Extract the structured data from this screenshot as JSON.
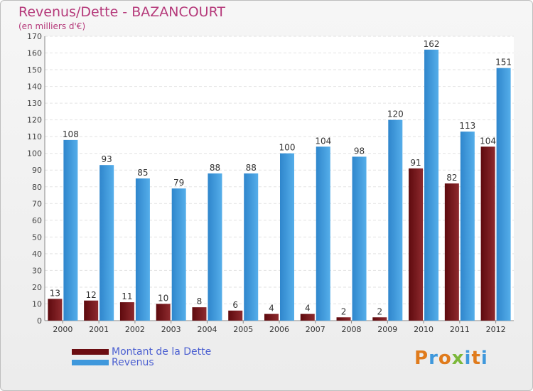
{
  "title": "Revenus/Dette - BAZANCOURT",
  "subtitle": "(en milliers d'€)",
  "logo_text": "Proxiti",
  "colors": {
    "debt": "#7a1a1f",
    "revenue": "#3f98dc",
    "title": "#b5397a",
    "legend_text": "#4b5fd1"
  },
  "legend": [
    {
      "label": "Montant de la Dette",
      "color": "#6b0d12"
    },
    {
      "label": "Revenus",
      "color": "#3f98dc"
    }
  ],
  "chart_data": {
    "type": "bar",
    "title": "Revenus/Dette - BAZANCOURT",
    "ylabel": "(en milliers d'€)",
    "ylim": [
      0,
      170
    ],
    "yticks": [
      0,
      10,
      20,
      30,
      40,
      50,
      60,
      70,
      80,
      90,
      100,
      110,
      120,
      130,
      140,
      150,
      160,
      170
    ],
    "grid": true,
    "categories": [
      "2000",
      "2001",
      "2002",
      "2003",
      "2004",
      "2005",
      "2006",
      "2007",
      "2008",
      "2009",
      "2010",
      "2011",
      "2012"
    ],
    "series": [
      {
        "name": "Montant de la Dette",
        "values": [
          13,
          12,
          11,
          10,
          8,
          6,
          4,
          4,
          2,
          2,
          91,
          82,
          104
        ]
      },
      {
        "name": "Revenus",
        "values": [
          108,
          93,
          85,
          79,
          88,
          88,
          100,
          104,
          98,
          120,
          162,
          113,
          151
        ]
      }
    ]
  }
}
